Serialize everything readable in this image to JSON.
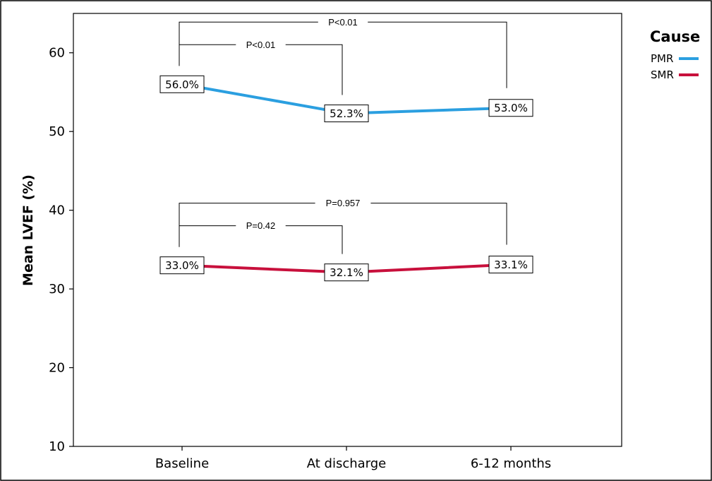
{
  "chart_data": {
    "type": "line",
    "categories": [
      "Baseline",
      "At discharge",
      "6-12 months"
    ],
    "xlabel": "",
    "ylabel": "Mean LVEF (%)",
    "ylim": [
      10,
      65
    ],
    "yticks": [
      10,
      20,
      30,
      40,
      50,
      60
    ],
    "grid": false,
    "legend": {
      "title": "Cause",
      "position": "top-right"
    },
    "series": [
      {
        "name": "PMR",
        "color": "#2b9fe0",
        "values": [
          56.0,
          52.3,
          53.0
        ],
        "labels": [
          "56.0%",
          "52.3%",
          "53.0%"
        ]
      },
      {
        "name": "SMR",
        "color": "#c8103c",
        "values": [
          33.0,
          32.1,
          33.1
        ],
        "labels": [
          "33.0%",
          "32.1%",
          "33.1%"
        ]
      }
    ],
    "annotations": [
      {
        "series": "PMR",
        "from": 0,
        "to": 2,
        "text": "P<0.01"
      },
      {
        "series": "PMR",
        "from": 0,
        "to": 1,
        "text": "P<0.01"
      },
      {
        "series": "SMR",
        "from": 0,
        "to": 2,
        "text": "P=0.957"
      },
      {
        "series": "SMR",
        "from": 0,
        "to": 1,
        "text": "P=0.42"
      }
    ]
  }
}
